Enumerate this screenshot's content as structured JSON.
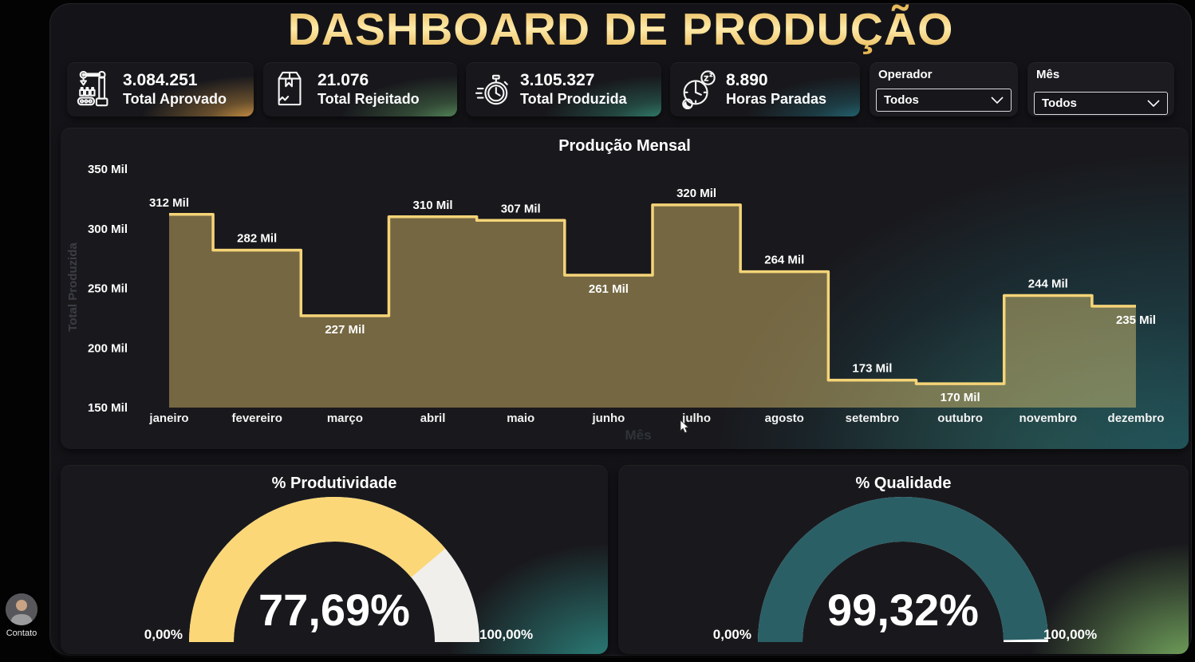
{
  "page": {
    "title": "DASHBOARD DE PRODUÇÃO"
  },
  "kpis": [
    {
      "value": "3.084.251",
      "label": "Total Aprovado",
      "icon": "robot-arm-icon",
      "accent_rgb": "226,162,72"
    },
    {
      "value": "21.076",
      "label": "Total Rejeitado",
      "icon": "damaged-box-icon",
      "accent_rgb": "92,150,96"
    },
    {
      "value": "3.105.327",
      "label": "Total Produzida",
      "icon": "stopwatch-icon",
      "accent_rgb": "52,140,118"
    },
    {
      "value": "8.890",
      "label": "Horas Paradas",
      "icon": "sleep-clock-icon",
      "accent_rgb": "36,112,126"
    }
  ],
  "filters": [
    {
      "label": "Operador",
      "value": "Todos"
    },
    {
      "label": "Mês",
      "value": "Todos"
    }
  ],
  "chart_data": {
    "type": "area",
    "variant": "step",
    "title": "Produção Mensal",
    "xlabel": "Mês",
    "ylabel": "Total Produzida",
    "categories": [
      "janeiro",
      "fevereiro",
      "março",
      "abril",
      "maio",
      "junho",
      "julho",
      "agosto",
      "setembro",
      "outubro",
      "novembro",
      "dezembro"
    ],
    "values": [
      312,
      282,
      227,
      310,
      307,
      261,
      320,
      264,
      173,
      170,
      244,
      235
    ],
    "unit": "Mil",
    "data_labels": [
      "312 Mil",
      "282 Mil",
      "227 Mil",
      "310 Mil",
      "307 Mil",
      "261 Mil",
      "320 Mil",
      "264 Mil",
      "173 Mil",
      "170 Mil",
      "244 Mil",
      "235 Mil"
    ],
    "label_position": [
      "above",
      "above",
      "below",
      "above",
      "above",
      "below",
      "above",
      "above",
      "above",
      "below",
      "above",
      "below"
    ],
    "ylim": [
      150,
      350
    ],
    "yticks": [
      150,
      200,
      250,
      300,
      350
    ],
    "ytick_labels": [
      "150 Mil",
      "200 Mil",
      "250 Mil",
      "300 Mil",
      "350 Mil"
    ],
    "grid": false,
    "legend": false,
    "line_color": "#f5d478",
    "fill_color": "rgba(245,212,120,0.42)"
  },
  "gauges": [
    {
      "title": "% Produtividade",
      "value": 77.69,
      "value_display": "77,69%",
      "min_label": "0,00%",
      "max_label": "100,00%",
      "arc_color": "#fbd778",
      "track_color": "#f1efec"
    },
    {
      "title": "% Qualidade",
      "value": 99.32,
      "value_display": "99,32%",
      "min_label": "0,00%",
      "max_label": "100,00%",
      "arc_color": "#2a5f66",
      "track_color": "#ffffff"
    }
  ],
  "contact": {
    "label": "Contato"
  }
}
